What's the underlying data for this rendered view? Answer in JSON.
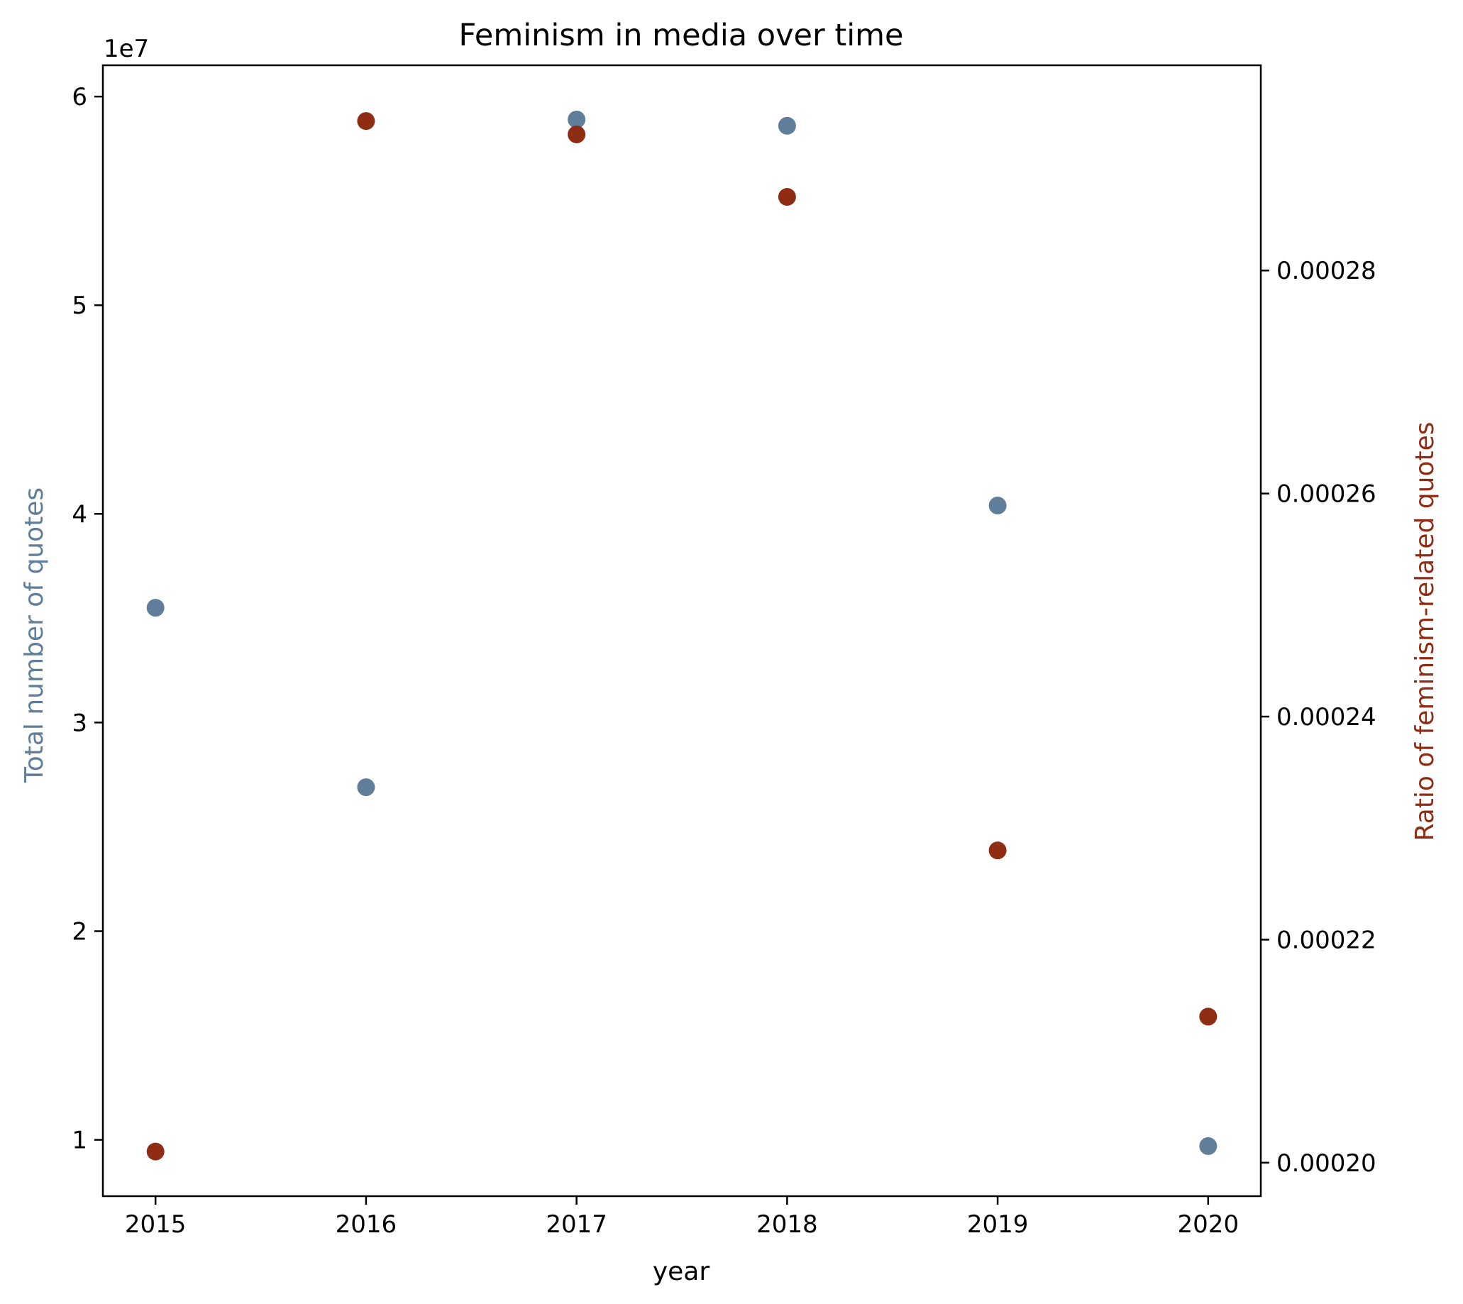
{
  "chart_data": {
    "type": "scatter",
    "title": "Feminism in media over time",
    "xlabel": "year",
    "ylabel_left": "Total number of quotes",
    "ylabel_right": "Ratio of feminism-related quotes",
    "left_offset_label": "1e7",
    "x": [
      2015,
      2016,
      2017,
      2018,
      2019,
      2020
    ],
    "xticks": [
      "2015",
      "2016",
      "2017",
      "2018",
      "2019",
      "2020"
    ],
    "xlim": [
      2014.75,
      2020.25
    ],
    "ylim_left": [
      7300000,
      61500000
    ],
    "yticks_left": [
      {
        "value": 10000000,
        "label": "1"
      },
      {
        "value": 20000000,
        "label": "2"
      },
      {
        "value": 30000000,
        "label": "3"
      },
      {
        "value": 40000000,
        "label": "4"
      },
      {
        "value": 50000000,
        "label": "5"
      },
      {
        "value": 60000000,
        "label": "6"
      }
    ],
    "ylim_right": [
      0.000197,
      0.0002984
    ],
    "yticks_right": [
      {
        "value": 0.0002,
        "label": "0.00020"
      },
      {
        "value": 0.00022,
        "label": "0.00022"
      },
      {
        "value": 0.00024,
        "label": "0.00024"
      },
      {
        "value": 0.00026,
        "label": "0.00026"
      },
      {
        "value": 0.00028,
        "label": "0.00028"
      }
    ],
    "series": [
      {
        "axis": "left",
        "color": "#607d99",
        "values": [
          35500000,
          26900000,
          58900000,
          58600000,
          40400000,
          9700000
        ]
      },
      {
        "axis": "right",
        "color": "#8f2d14",
        "values": [
          0.000201,
          0.0002934,
          0.0002922,
          0.0002866,
          0.000228,
          0.0002131
        ]
      }
    ],
    "grid": false,
    "legend": "none"
  }
}
